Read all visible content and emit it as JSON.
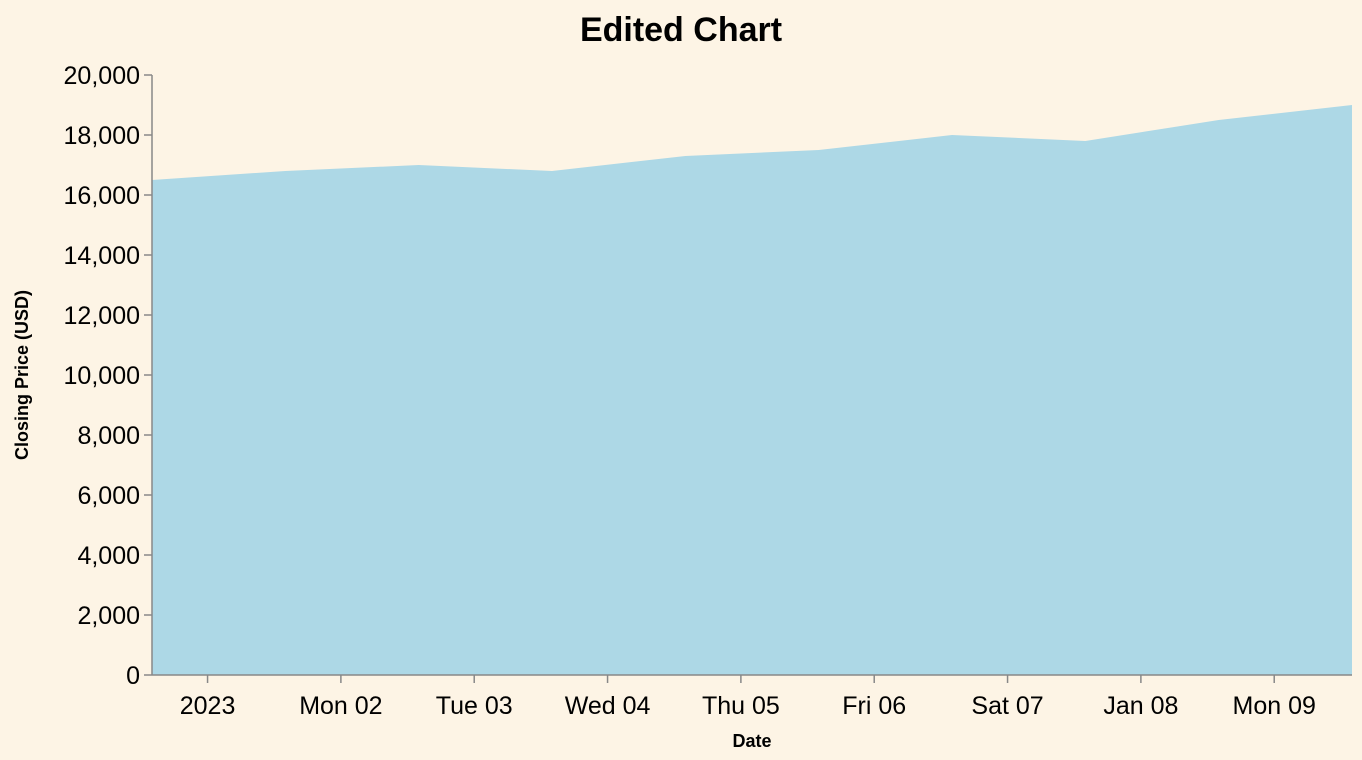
{
  "chart_data": {
    "type": "area",
    "title": "Edited Chart",
    "xlabel": "Date",
    "ylabel": "Closing Price (USD)",
    "ylim": [
      0,
      20000
    ],
    "yticks": [
      0,
      2000,
      4000,
      6000,
      8000,
      10000,
      12000,
      14000,
      16000,
      18000,
      20000
    ],
    "ytick_labels": [
      "0",
      "2,000",
      "4,000",
      "6,000",
      "8,000",
      "10,000",
      "12,000",
      "14,000",
      "16,000",
      "18,000",
      "20,000"
    ],
    "xlim": [
      "2022-12-31T14:00",
      "2023-01-09T14:00"
    ],
    "xticks": [
      "2023-01-01T00:00",
      "2023-01-02T00:00",
      "2023-01-03T00:00",
      "2023-01-04T00:00",
      "2023-01-05T00:00",
      "2023-01-06T00:00",
      "2023-01-07T00:00",
      "2023-01-08T00:00",
      "2023-01-09T00:00"
    ],
    "xtick_labels": [
      "2023",
      "Mon 02",
      "Tue 03",
      "Wed 04",
      "Thu 05",
      "Fri 06",
      "Sat 07",
      "Jan 08",
      "Mon 09"
    ],
    "x": [
      "2022-12-31T14:00",
      "2023-01-01T14:00",
      "2023-01-02T14:00",
      "2023-01-03T14:00",
      "2023-01-04T14:00",
      "2023-01-05T14:00",
      "2023-01-06T14:00",
      "2023-01-07T14:00",
      "2023-01-08T14:00",
      "2023-01-09T14:00"
    ],
    "series": [
      {
        "values": [
          16500,
          16800,
          17000,
          16800,
          17300,
          17500,
          18000,
          17800,
          18500,
          19000
        ]
      }
    ],
    "grid": false,
    "fill_color": "#add8e6",
    "background_color": "#fdf4e5",
    "axis_color": "#888888"
  }
}
